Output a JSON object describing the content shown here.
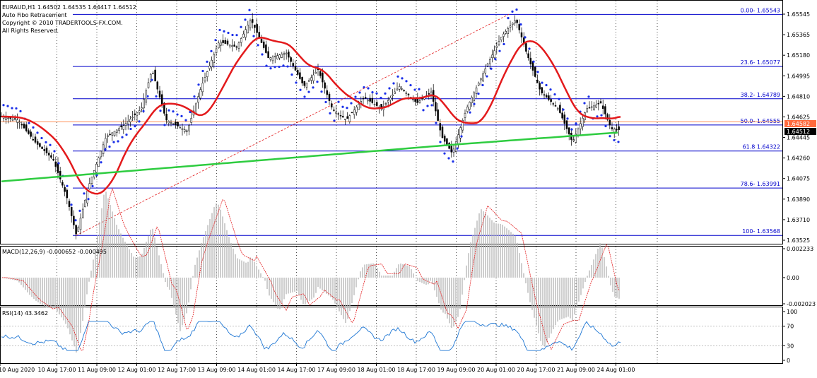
{
  "header": {
    "symbol_line": "EURAUD,H1  1.64502 1.64535 1.64417 1.64512",
    "indicator_name": "Auto Fibo Retracement",
    "copyright": "Copyright © 2010 TRADERTOOLS-FX.COM.",
    "rights": "All Rights Reserved."
  },
  "fibo_levels": [
    {
      "label": "0.00- 1.65543",
      "price": 1.65543
    },
    {
      "label": "23.6- 1.65077",
      "price": 1.65077
    },
    {
      "label": "38.2- 1.64789",
      "price": 1.64789
    },
    {
      "label": "50.0- 1.64555",
      "price": 1.64555
    },
    {
      "label": "61.8 1.64322",
      "price": 1.64322
    },
    {
      "label": "78.6- 1.63991",
      "price": 1.63991
    },
    {
      "label": "100- 1.63568",
      "price": 1.63568
    }
  ],
  "price_axis": {
    "ticks": [
      "1.65545",
      "1.65365",
      "1.65180",
      "1.64995",
      "1.64810",
      "1.64625",
      "1.64445",
      "1.64260",
      "1.64075",
      "1.63890",
      "1.63710",
      "1.63525"
    ],
    "min": 1.63525,
    "max": 1.65545,
    "bid_tag": "1.64582",
    "current_tag": "1.64512"
  },
  "time_axis": {
    "ticks": [
      "10 Aug 2020",
      "10 Aug 17:00",
      "11 Aug 09:00",
      "12 Aug 01:00",
      "12 Aug 17:00",
      "13 Aug 09:00",
      "14 Aug 01:00",
      "14 Aug 17:00",
      "17 Aug 09:00",
      "18 Aug 01:00",
      "18 Aug 17:00",
      "19 Aug 09:00",
      "20 Aug 01:00",
      "20 Aug 17:00",
      "21 Aug 09:00",
      "24 Aug 01:00"
    ]
  },
  "macd": {
    "label": "MACD(12,26,9) -0.000652 -0.000495",
    "ticks": [
      "0.002233",
      "0.00",
      "-0.002023"
    ],
    "max": 0.002233,
    "min": -0.002023
  },
  "rsi": {
    "label": "RSI(14) 43.3462",
    "ticks": [
      "100",
      "70",
      "30",
      "0"
    ]
  },
  "colors": {
    "fibo_line": "#0000cc",
    "ma_fast": "#e31a1c",
    "ma_slow": "#2ecc40",
    "sar": "#1a2fe8",
    "candles": "#000000",
    "macd_signal": "#e31a1c",
    "macd_hist": "#b8b8b8",
    "rsi_line": "#1f77d4",
    "bid_tag_bg": "#ff6a3d",
    "current_tag_bg": "#000000"
  }
}
